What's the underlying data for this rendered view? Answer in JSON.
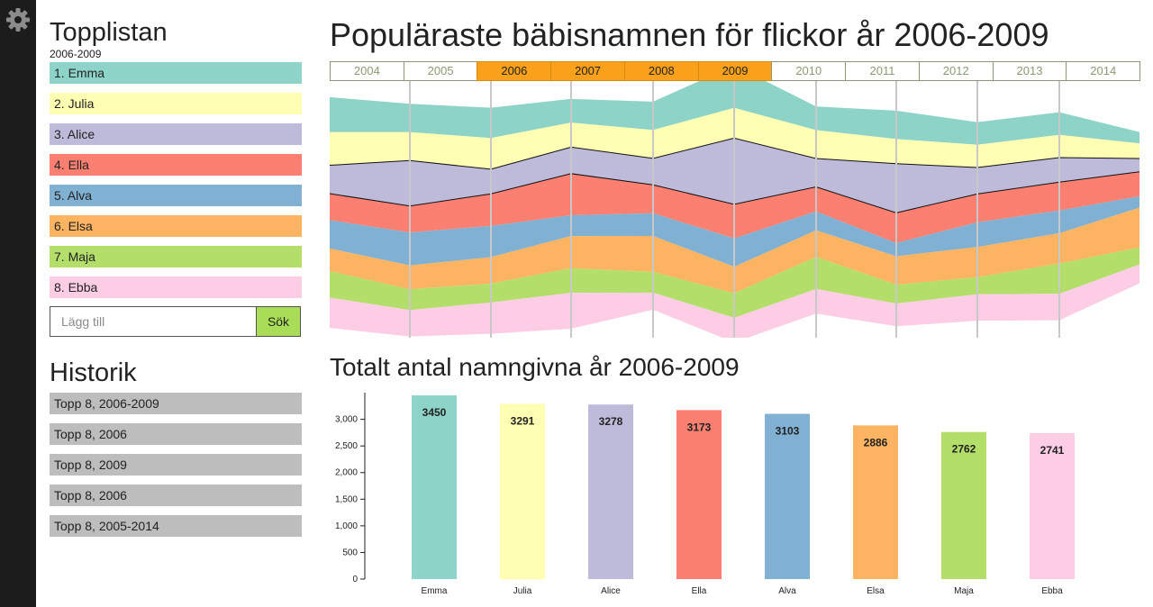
{
  "settings": {
    "icon": "gear-icon"
  },
  "topplistan": {
    "title": "Topplistan",
    "subtitle": "2006-2009",
    "items": [
      {
        "label": "1. Emma",
        "color": "#8dd3c7"
      },
      {
        "label": "2. Julia",
        "color": "#ffffb3"
      },
      {
        "label": "3. Alice",
        "color": "#bebada"
      },
      {
        "label": "4. Ella",
        "color": "#fb8072"
      },
      {
        "label": "5. Alva",
        "color": "#80b1d3"
      },
      {
        "label": "6. Elsa",
        "color": "#fdb462"
      },
      {
        "label": "7. Maja",
        "color": "#b3de69"
      },
      {
        "label": "8. Ebba",
        "color": "#fccde5"
      }
    ],
    "search": {
      "placeholder": "Lägg till",
      "button": "Sök"
    }
  },
  "historik": {
    "title": "Historik",
    "items": [
      "Topp 8, 2006-2009",
      "Topp 8, 2006",
      "Topp 8, 2009",
      "Topp 8, 2006",
      "Topp 8, 2005-2014"
    ]
  },
  "main": {
    "title": "Populäraste bäbisnamnen för flickor år 2006-2009",
    "years": [
      {
        "label": "2004",
        "selected": false
      },
      {
        "label": "2005",
        "selected": false
      },
      {
        "label": "2006",
        "selected": true
      },
      {
        "label": "2007",
        "selected": true
      },
      {
        "label": "2008",
        "selected": true
      },
      {
        "label": "2009",
        "selected": true
      },
      {
        "label": "2010",
        "selected": false
      },
      {
        "label": "2011",
        "selected": false
      },
      {
        "label": "2012",
        "selected": false
      },
      {
        "label": "2013",
        "selected": false
      },
      {
        "label": "2014",
        "selected": false
      }
    ],
    "bar_title": "Totalt antal namngivna år 2006-2009"
  },
  "chart_data": [
    {
      "type": "area",
      "stacked": true,
      "x": [
        "2004",
        "2005",
        "2006",
        "2007",
        "2008",
        "2009",
        "2010",
        "2011",
        "2012",
        "2013",
        "2014"
      ],
      "series": [
        {
          "name": "Emma",
          "values": [
            37,
            30,
            32,
            25,
            30,
            45,
            25,
            30,
            24,
            24,
            12
          ]
        },
        {
          "name": "Julia",
          "values": [
            35,
            30,
            33,
            26,
            30,
            32,
            30,
            26,
            24,
            24,
            16
          ]
        },
        {
          "name": "Alice",
          "values": [
            30,
            48,
            26,
            28,
            28,
            70,
            30,
            52,
            28,
            26,
            14
          ]
        },
        {
          "name": "Ella",
          "values": [
            28,
            28,
            34,
            44,
            30,
            36,
            26,
            32,
            30,
            30,
            26
          ]
        },
        {
          "name": "Alva",
          "values": [
            30,
            35,
            33,
            22,
            24,
            30,
            20,
            14,
            26,
            24,
            12
          ]
        },
        {
          "name": "Elsa",
          "values": [
            24,
            25,
            28,
            34,
            38,
            28,
            28,
            30,
            32,
            32,
            42
          ]
        },
        {
          "name": "Maja",
          "values": [
            28,
            22,
            20,
            26,
            22,
            26,
            34,
            20,
            18,
            32,
            18
          ]
        },
        {
          "name": "Ebba",
          "values": [
            32,
            28,
            33,
            38,
            18,
            26,
            26,
            24,
            28,
            28,
            20
          ]
        }
      ],
      "colors": [
        "#8dd3c7",
        "#ffffb3",
        "#bebada",
        "#fb8072",
        "#80b1d3",
        "#fdb462",
        "#b3de69",
        "#fccde5"
      ],
      "highlight": "Alice",
      "grid": true
    },
    {
      "type": "bar",
      "categories": [
        "Emma",
        "Julia",
        "Alice",
        "Ella",
        "Alva",
        "Elsa",
        "Maja",
        "Ebba"
      ],
      "values": [
        3450,
        3291,
        3278,
        3173,
        3103,
        2886,
        2762,
        2741
      ],
      "colors": [
        "#8dd3c7",
        "#ffffb3",
        "#bebada",
        "#fb8072",
        "#80b1d3",
        "#fdb462",
        "#b3de69",
        "#fccde5"
      ],
      "ylim": [
        0,
        3450
      ],
      "yticks": [
        "0",
        "500",
        "1,000",
        "1,500",
        "2,000",
        "2,500",
        "3,000"
      ],
      "title": "Totalt antal namngivna år 2006-2009"
    }
  ]
}
